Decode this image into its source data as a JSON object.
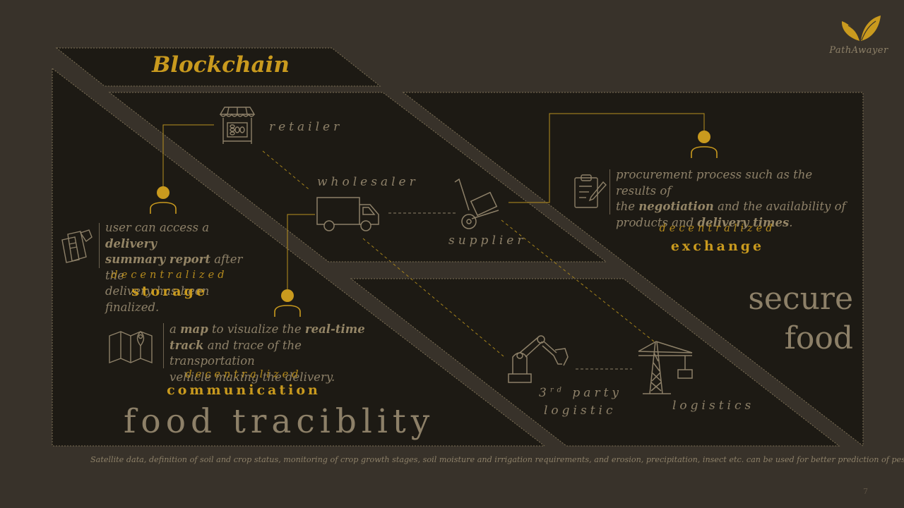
{
  "brand": {
    "name": "PathAwayer"
  },
  "title": "Blockchain",
  "labels": {
    "retailer": "retailer",
    "wholesaler": "wholesaler",
    "supplier": "supplier",
    "third_party": "party",
    "third_party_num": "3",
    "third_party_sup": "rd",
    "third_party_line2": "logistic",
    "logistics": "logistics"
  },
  "storage": {
    "text_1": "user can access a",
    "text_2": "delivery",
    "text_3": "summary report",
    "text_4": "after the",
    "text_5": "delivery has been finalized.",
    "decentralized": "decentralized",
    "title": "storage"
  },
  "communication": {
    "text_1": "a",
    "text_2": "map",
    "text_3": "to visualize the",
    "text_4": "real-time",
    "text_5": "track",
    "text_6": "and trace of the transportation",
    "text_7": "vehicle making the delivery.",
    "decentralized": "decentralized",
    "title": "communication"
  },
  "exchange": {
    "text_1": "procurement process such as the results of",
    "text_2": "the",
    "text_3": "negotiation",
    "text_4": "and the availability of",
    "text_5": "products and",
    "text_6": "delivery times",
    "text_7": ".",
    "decentralized": "decentralized",
    "title": "exchange"
  },
  "big_right": {
    "line1": "secure",
    "line2": "food"
  },
  "big_bottom": "food traciblity",
  "footnote": "Satellite data, definition of soil and crop status, monitoring of crop growth stages, soil moisture and irrigation requirements, and erosion, precipitation, insect etc. can be used for better prediction of pests.",
  "page_number": "7",
  "colors": {
    "background": "#38322a",
    "panel": "#1d1a14",
    "gold": "#c99a1e",
    "muted": "#8d8068"
  }
}
